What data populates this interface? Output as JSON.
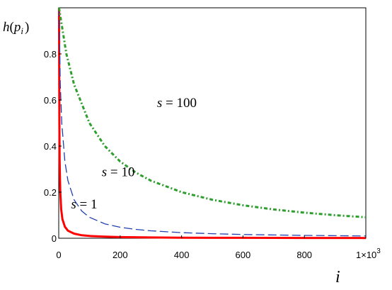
{
  "chart_data": {
    "type": "line",
    "title": "",
    "xlabel": "i",
    "ylabel": "h(p_i)",
    "ylabel_parts": {
      "func": "h",
      "open": "(",
      "var": "p",
      "sub": "i",
      "close": ")"
    },
    "xlim": [
      0,
      1000
    ],
    "ylim": [
      0,
      1
    ],
    "x_ticks": [
      0,
      200,
      400,
      600,
      800,
      1000
    ],
    "x_tick_labels": [
      "0",
      "200",
      "400",
      "600",
      "800",
      "1×10"
    ],
    "x_tick_last_exponent": "3",
    "y_ticks": [
      0,
      0.2,
      0.4,
      0.6,
      0.8
    ],
    "y_tick_labels": [
      "0",
      "0.2",
      "0.4",
      "0.6",
      "0.8"
    ],
    "grid": false,
    "annotations": [
      {
        "var": "s",
        "eq": " = ",
        "val": "100",
        "x": 320,
        "y": 0.57
      },
      {
        "var": "s",
        "eq": " = ",
        "val": "10",
        "x": 140,
        "y": 0.27
      },
      {
        "var": "s",
        "eq": " = ",
        "val": "1",
        "x": 40,
        "y": 0.13
      }
    ],
    "series": [
      {
        "s": 1,
        "color": "#ff0000",
        "style": "solid",
        "x": [
          1,
          2,
          3,
          5,
          8,
          12,
          20,
          30,
          50,
          75,
          100,
          150,
          200,
          300,
          400,
          500,
          600,
          700,
          800,
          900,
          1000
        ],
        "y": [
          1.0,
          0.5,
          0.333,
          0.2,
          0.125,
          0.083,
          0.05,
          0.033,
          0.02,
          0.013,
          0.01,
          0.0067,
          0.005,
          0.0033,
          0.0025,
          0.002,
          0.0017,
          0.0014,
          0.0013,
          0.0011,
          0.001
        ]
      },
      {
        "s": 10,
        "color": "#1f3fb0",
        "style": "dashed",
        "x": [
          1,
          5,
          10,
          20,
          30,
          50,
          75,
          100,
          150,
          200,
          250,
          300,
          400,
          500,
          600,
          700,
          800,
          900,
          1000
        ],
        "y": [
          1.0,
          0.667,
          0.5,
          0.333,
          0.25,
          0.167,
          0.118,
          0.091,
          0.0625,
          0.0476,
          0.0385,
          0.0323,
          0.0244,
          0.0196,
          0.0164,
          0.0141,
          0.0123,
          0.011,
          0.0099
        ]
      },
      {
        "s": 100,
        "color": "#2e9e2e",
        "style": "dash-dot",
        "x": [
          1,
          25,
          50,
          100,
          150,
          200,
          250,
          300,
          400,
          500,
          600,
          700,
          800,
          900,
          1000
        ],
        "y": [
          1.0,
          0.8,
          0.667,
          0.5,
          0.4,
          0.333,
          0.286,
          0.25,
          0.2,
          0.167,
          0.143,
          0.125,
          0.111,
          0.1,
          0.091
        ]
      }
    ]
  }
}
